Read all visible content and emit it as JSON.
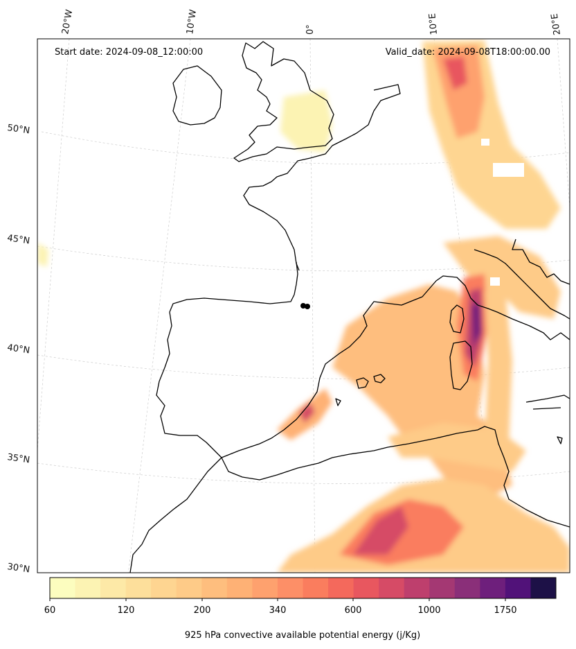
{
  "header": {
    "start_date": "Start date: 2024-09-08_12:00:00",
    "valid_date": "Valid_date: 2024-09-08T18:00:00.00"
  },
  "longitude_labels": [
    "20°W",
    "10°W",
    "0°",
    "10°E",
    "20°E"
  ],
  "latitude_labels": [
    "50°N",
    "45°N",
    "40°N",
    "35°N",
    "30°N"
  ],
  "colorbar": {
    "tick_labels": [
      "60",
      "120",
      "200",
      "340",
      "600",
      "1000",
      "1750"
    ],
    "label": "925 hPa convective available potential energy (j/Kg)",
    "colors": [
      "#fcfdbf",
      "#fcf3b3",
      "#fde9a7",
      "#fddf9b",
      "#fed591",
      "#fecb88",
      "#febe7e",
      "#feb175",
      "#fea16e",
      "#fd8f67",
      "#fa7d5e",
      "#f4695c",
      "#e8575f",
      "#d64b66",
      "#be3f6d",
      "#a43873",
      "#8a2f79",
      "#6e1f7c",
      "#511279",
      "#1d1147"
    ]
  },
  "map": {
    "projection": "lambert-conformal",
    "field": "cape_925hPa",
    "coastline_color": "#000000"
  }
}
